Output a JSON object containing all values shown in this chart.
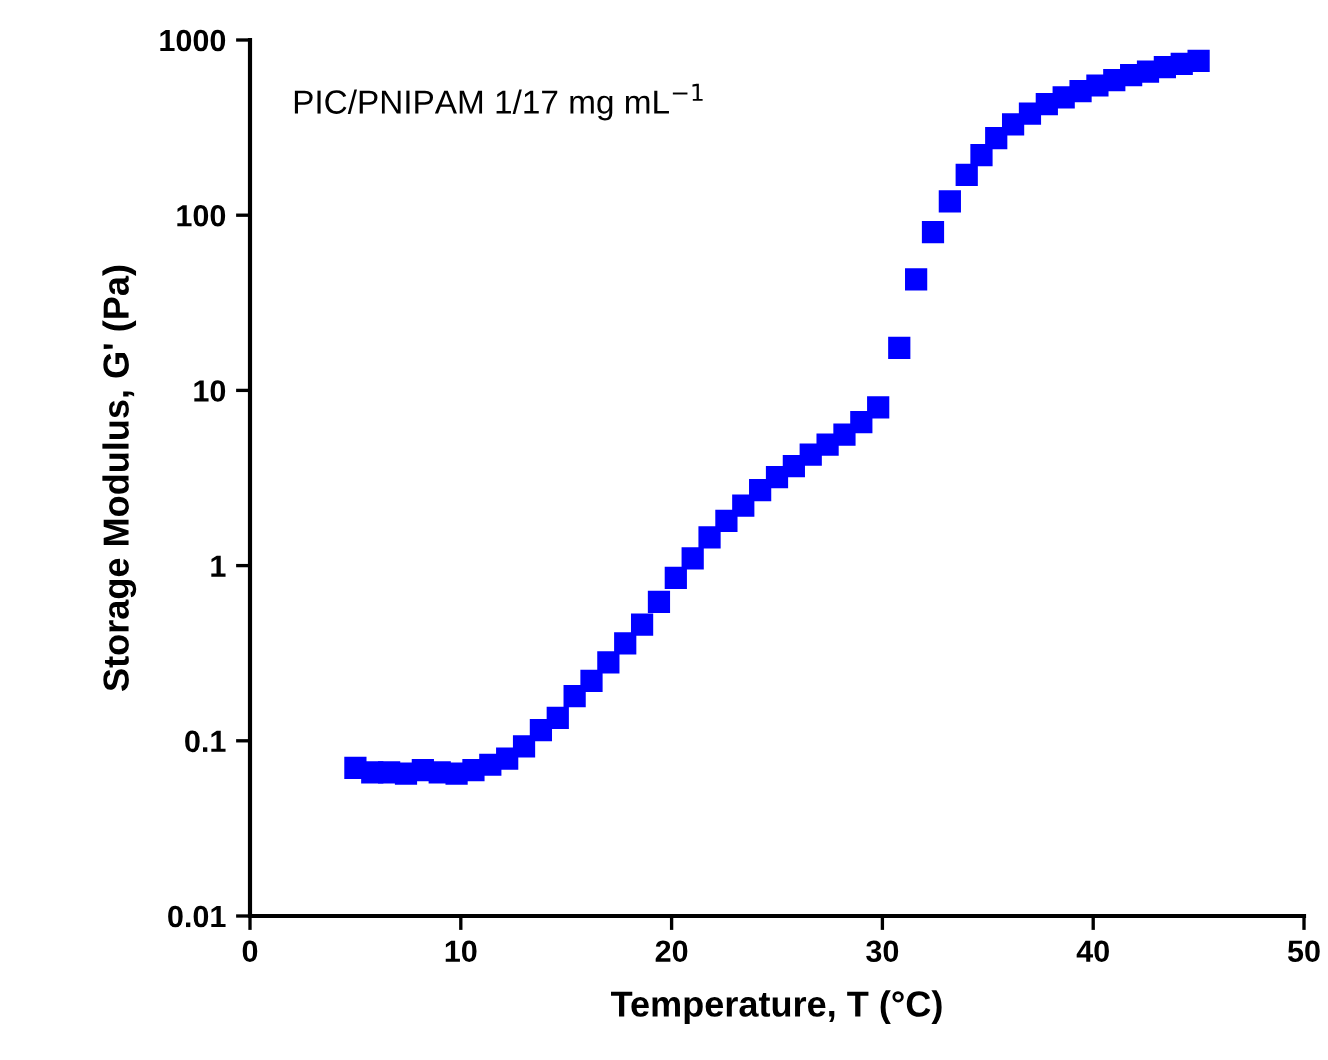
{
  "chart_data": {
    "type": "scatter",
    "xlabel": "Temperature, T (°C)",
    "ylabel": "Storage Modulus, G' (Pa)",
    "annotations": [
      "PIC/PNIPAM 1/17 mg mL$^{−1}$"
    ],
    "log": "y",
    "marker": "square",
    "grid": false,
    "xlim": [
      0,
      50
    ],
    "xticks": [
      0,
      10,
      20,
      30,
      40,
      50
    ],
    "ylim": [
      0.01,
      1000
    ],
    "yticks": [
      0.01,
      0.1,
      1,
      10,
      100,
      1000
    ],
    "series": [
      {
        "color": "#0000ff",
        "x": [
          5.0,
          5.8,
          6.6,
          7.4,
          8.2,
          9.0,
          9.8,
          10.6,
          11.4,
          12.2,
          13.0,
          13.8,
          14.6,
          15.4,
          16.2,
          17.0,
          17.8,
          18.6,
          19.4,
          20.2,
          21.0,
          21.8,
          22.6,
          23.4,
          24.2,
          25.0,
          25.8,
          26.6,
          27.4,
          28.2,
          29.0,
          29.8,
          30.8,
          31.6,
          32.4,
          33.2,
          34.0,
          34.7,
          35.4,
          36.2,
          37.0,
          37.8,
          38.6,
          39.4,
          40.2,
          41.0,
          41.8,
          42.6,
          43.4,
          44.2,
          45.0
        ],
        "values": [
          0.07,
          0.066,
          0.066,
          0.065,
          0.068,
          0.066,
          0.065,
          0.068,
          0.073,
          0.079,
          0.093,
          0.115,
          0.135,
          0.18,
          0.22,
          0.28,
          0.36,
          0.46,
          0.62,
          0.85,
          1.1,
          1.45,
          1.8,
          2.2,
          2.7,
          3.2,
          3.7,
          4.3,
          4.9,
          5.6,
          6.6,
          8.0,
          17.5,
          43,
          80,
          120,
          170,
          220,
          275,
          330,
          380,
          430,
          470,
          510,
          550,
          590,
          630,
          660,
          700,
          730,
          760
        ]
      }
    ]
  }
}
